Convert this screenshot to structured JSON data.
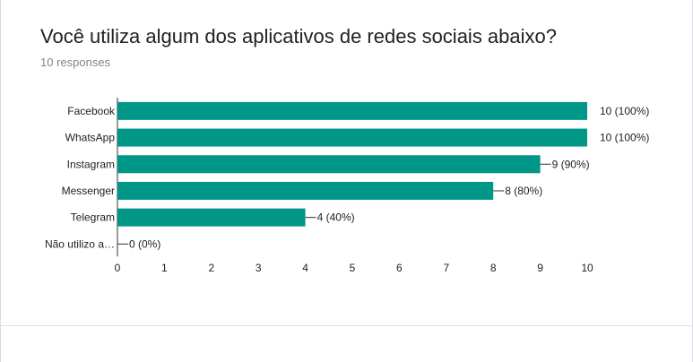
{
  "question": {
    "title": "Você utiliza algum dos aplicativos de redes sociais abaixo?",
    "responses": "10 responses"
  },
  "colors": {
    "bar": "#009688",
    "axis": "#333333",
    "grid": "#cccccc"
  },
  "chart_data": {
    "type": "bar",
    "orientation": "horizontal",
    "categories": [
      "Facebook",
      "WhatsApp",
      "Instagram",
      "Messenger",
      "Telegram",
      "Não utilizo a…"
    ],
    "values": [
      10,
      10,
      9,
      8,
      4,
      0
    ],
    "value_labels": [
      "10 (100%)",
      "10 (100%)",
      "9 (90%)",
      "8 (80%)",
      "4 (40%)",
      "0 (0%)"
    ],
    "xlim": [
      0,
      10
    ],
    "xticks": [
      "0",
      "1",
      "2",
      "3",
      "4",
      "5",
      "6",
      "7",
      "8",
      "9",
      "10"
    ],
    "grid": false,
    "legend": "none"
  }
}
